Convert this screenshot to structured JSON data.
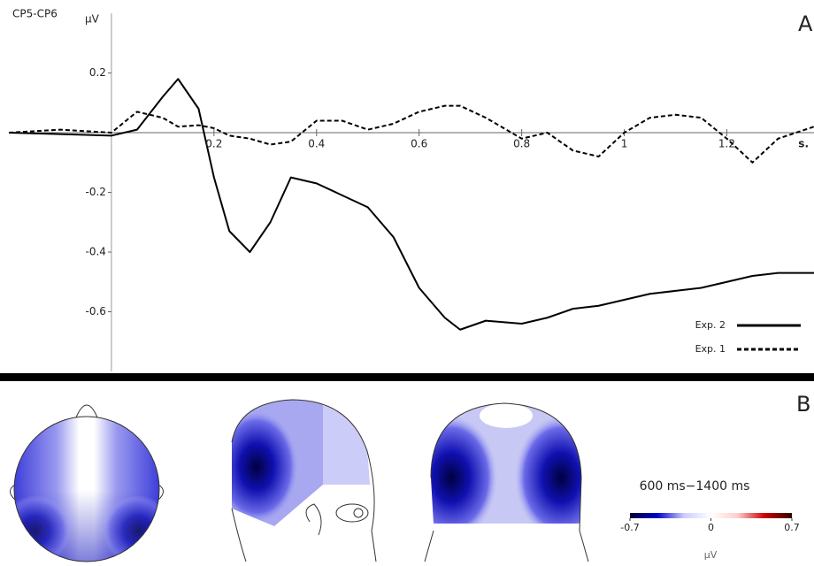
{
  "chart_data": {
    "type": "line",
    "title": "CP5-CP6",
    "ylabel": "μV",
    "xlabel": "s.",
    "panel_labels": [
      "A",
      "B"
    ],
    "x": [
      -0.2,
      -0.1,
      0,
      0.05,
      0.1,
      0.13,
      0.17,
      0.2,
      0.23,
      0.27,
      0.31,
      0.35,
      0.4,
      0.45,
      0.5,
      0.55,
      0.6,
      0.65,
      0.68,
      0.73,
      0.8,
      0.85,
      0.9,
      0.95,
      1.0,
      1.05,
      1.1,
      1.15,
      1.2,
      1.25,
      1.3,
      1.37
    ],
    "series": [
      {
        "name": "Exp. 2",
        "color": "#000000",
        "dash": "solid",
        "values": [
          0,
          -0.005,
          -0.01,
          0.01,
          0.12,
          0.18,
          0.08,
          -0.15,
          -0.33,
          -0.4,
          -0.3,
          -0.15,
          -0.17,
          -0.21,
          -0.25,
          -0.35,
          -0.52,
          -0.62,
          -0.66,
          -0.63,
          -0.64,
          -0.62,
          -0.59,
          -0.58,
          -0.56,
          -0.54,
          -0.53,
          -0.52,
          -0.5,
          -0.48,
          -0.47,
          -0.47
        ]
      },
      {
        "name": "Exp. 1",
        "color": "#000000",
        "dash": "dashed",
        "values": [
          0,
          0.01,
          0,
          0.07,
          0.05,
          0.02,
          0.025,
          0.015,
          -0.01,
          -0.02,
          -0.04,
          -0.03,
          0.04,
          0.04,
          0.01,
          0.03,
          0.07,
          0.09,
          0.09,
          0.05,
          -0.02,
          0,
          -0.06,
          -0.08,
          0,
          0.05,
          0.06,
          0.05,
          -0.02,
          -0.1,
          -0.02,
          0.02
        ]
      }
    ],
    "xlim": [
      -0.2,
      1.37
    ],
    "ylim": [
      -0.8,
      0.4
    ],
    "xticks": [
      0.2,
      0.4,
      0.6,
      0.8,
      1,
      1.2
    ],
    "yticks": [
      0.2,
      -0.2,
      -0.4,
      -0.6
    ],
    "legend": "lower right",
    "colorbar": {
      "title": "600 ms−1400 ms",
      "label": "μV",
      "range": [
        -0.7,
        0.7
      ],
      "ticks": [
        -0.7,
        0,
        0.7
      ],
      "colors": [
        "#000033",
        "#0000cc",
        "#ccccff",
        "#ffffff",
        "#ffcccc",
        "#cc0000",
        "#330000"
      ]
    }
  }
}
